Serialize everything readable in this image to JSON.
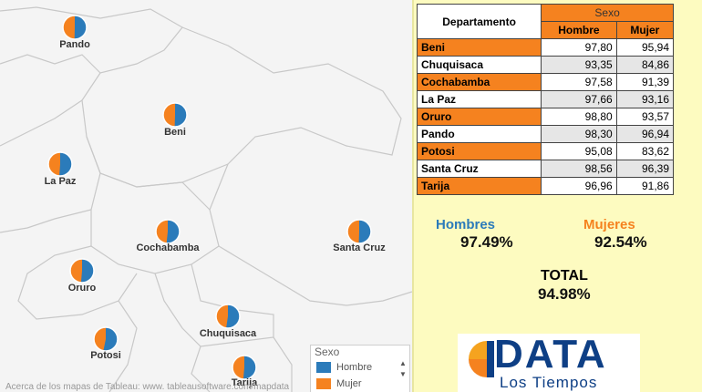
{
  "map": {
    "departments": [
      {
        "label": "Pando",
        "hombre": 98.3,
        "mujer": 96.94
      },
      {
        "label": "Beni",
        "hombre": 97.8,
        "mujer": 95.94
      },
      {
        "label": "La Paz",
        "hombre": 97.66,
        "mujer": 93.16
      },
      {
        "label": "Cochabamba",
        "hombre": 97.58,
        "mujer": 91.39
      },
      {
        "label": "Santa Cruz",
        "hombre": 98.56,
        "mujer": 96.39
      },
      {
        "label": "Oruro",
        "hombre": 98.8,
        "mujer": 93.57
      },
      {
        "label": "Chuquisaca",
        "hombre": 93.35,
        "mujer": 84.86
      },
      {
        "label": "Potosi",
        "hombre": 95.08,
        "mujer": 83.62
      },
      {
        "label": "Tarija",
        "hombre": 96.96,
        "mujer": 91.86
      }
    ],
    "legend": {
      "title": "Sexo",
      "items": [
        {
          "label": "Hombre",
          "color": "#2b7bba"
        },
        {
          "label": "Mujer",
          "color": "#f5821f"
        }
      ]
    },
    "attribution": "Acerca de los mapas de Tableau: www. tableausoftware.com/mapdata"
  },
  "table": {
    "header_dept": "Departamento",
    "header_group": "Sexo",
    "col_hombre": "Hombre",
    "col_mujer": "Mujer",
    "rows": [
      {
        "dept": "Beni",
        "hombre": "97,80",
        "mujer": "95,94"
      },
      {
        "dept": "Chuquisaca",
        "hombre": "93,35",
        "mujer": "84,86"
      },
      {
        "dept": "Cochabamba",
        "hombre": "97,58",
        "mujer": "91,39"
      },
      {
        "dept": "La Paz",
        "hombre": "97,66",
        "mujer": "93,16"
      },
      {
        "dept": "Oruro",
        "hombre": "98,80",
        "mujer": "93,57"
      },
      {
        "dept": "Pando",
        "hombre": "98,30",
        "mujer": "96,94"
      },
      {
        "dept": "Potosi",
        "hombre": "95,08",
        "mujer": "83,62"
      },
      {
        "dept": "Santa Cruz",
        "hombre": "98,56",
        "mujer": "96,39"
      },
      {
        "dept": "Tarija",
        "hombre": "96,96",
        "mujer": "91,86"
      }
    ]
  },
  "summary": {
    "hombres_label": "Hombres",
    "hombres_value": "97.49%",
    "mujeres_label": "Mujeres",
    "mujeres_value": "92.54%",
    "total_label": "TOTAL",
    "total_value": "94.98%"
  },
  "logo": {
    "word": "DATA",
    "sub": "Los Tiempos"
  },
  "colors": {
    "hombre": "#2b7bba",
    "mujer": "#f5821f",
    "hombres_text": "#2b7bba",
    "mujeres_text": "#f5821f"
  }
}
